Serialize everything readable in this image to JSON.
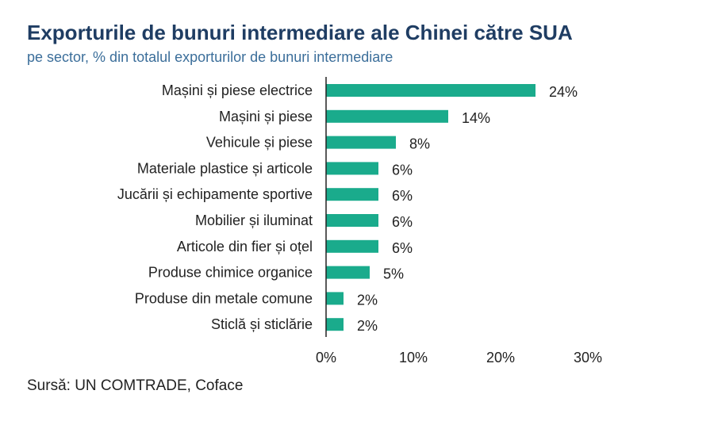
{
  "header": {
    "title": "Exporturile de bunuri intermediare ale Chinei către SUA",
    "subtitle": "pe sector, % din totalul exporturilor de bunuri intermediare"
  },
  "footer": {
    "source": "Sursă: UN COMTRADE, Coface"
  },
  "colors": {
    "bar": "#1aab8c",
    "axis": "#222222",
    "title": "#1f3d63",
    "subtitle": "#3b6e9a"
  },
  "chart_data": {
    "type": "bar",
    "orientation": "horizontal",
    "categories": [
      "Mașini și piese electrice",
      "Mașini și piese",
      "Vehicule și piese",
      "Materiale plastice și articole",
      "Jucării și echipamente sportive",
      "Mobilier și iluminat",
      "Articole din fier și oțel",
      "Produse chimice organice",
      "Produse din metale comune",
      "Sticlă și sticlărie"
    ],
    "values": [
      24,
      14,
      8,
      6,
      6,
      6,
      6,
      5,
      2,
      2
    ],
    "value_labels": [
      "24%",
      "14%",
      "8%",
      "6%",
      "6%",
      "6%",
      "6%",
      "5%",
      "2%",
      "2%"
    ],
    "xlim": [
      0,
      30
    ],
    "xticks": [
      0,
      10,
      20,
      30
    ],
    "xtick_labels": [
      "0%",
      "10%",
      "20%",
      "30%"
    ],
    "grid": false,
    "legend": "none"
  }
}
